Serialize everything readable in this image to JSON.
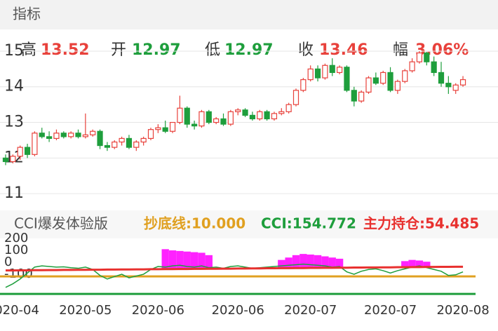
{
  "header": {
    "title": "指标"
  },
  "quote": {
    "items": [
      {
        "label": "高",
        "value": "13.52",
        "color": "#e8413b"
      },
      {
        "label": "开",
        "value": "12.97",
        "color": "#1e9e3c"
      },
      {
        "label": "低",
        "value": "12.97",
        "color": "#1e9e3c"
      },
      {
        "label": "收",
        "value": "13.46",
        "color": "#e8413b"
      },
      {
        "label": "幅",
        "value": "3.06%",
        "color": "#e8413b"
      }
    ]
  },
  "chart_data": [
    {
      "type": "candlestick",
      "up_color": "#e8413b",
      "down_color": "#1e9e3c",
      "ylim": [
        10.57,
        15.55
      ],
      "yticks": [
        15,
        14,
        13,
        12,
        11
      ],
      "grid": true,
      "open": [
        12.0,
        11.9,
        12.05,
        12.3,
        12.1,
        12.7,
        12.6,
        12.55,
        12.7,
        12.6,
        12.7,
        12.6,
        12.65,
        12.75,
        12.35,
        12.3,
        12.45,
        12.55,
        12.3,
        12.45,
        12.55,
        12.8,
        12.85,
        12.75,
        13.0,
        13.4,
        12.95,
        12.9,
        13.3,
        13.0,
        13.1,
        12.95,
        13.3,
        13.35,
        13.2,
        13.1,
        13.3,
        13.1,
        13.25,
        13.3,
        13.5,
        13.9,
        14.2,
        14.5,
        14.25,
        14.6,
        14.4,
        14.55,
        13.9,
        13.6,
        13.85,
        14.25,
        14.1,
        14.4,
        13.9,
        14.15,
        14.45,
        14.7,
        14.95,
        14.7,
        14.4,
        14.1,
        13.9,
        14.05
      ],
      "high": [
        12.1,
        12.1,
        12.35,
        12.4,
        12.75,
        12.85,
        12.75,
        12.8,
        12.75,
        12.75,
        12.8,
        13.25,
        12.8,
        12.8,
        12.45,
        12.5,
        12.6,
        12.65,
        12.5,
        12.6,
        12.85,
        12.95,
        13.05,
        13.0,
        13.75,
        13.45,
        13.05,
        13.35,
        13.35,
        13.15,
        13.25,
        13.35,
        13.4,
        13.4,
        13.3,
        13.35,
        13.35,
        13.3,
        13.4,
        13.55,
        13.95,
        14.25,
        14.6,
        14.6,
        14.65,
        14.8,
        14.6,
        14.6,
        14.0,
        13.9,
        14.3,
        14.4,
        14.45,
        14.55,
        14.2,
        14.5,
        14.8,
        15.0,
        14.98,
        14.85,
        14.7,
        14.3,
        14.1,
        14.3
      ],
      "low": [
        11.8,
        11.85,
        11.95,
        12.0,
        12.05,
        12.55,
        12.45,
        12.5,
        12.55,
        12.55,
        12.55,
        12.55,
        12.6,
        12.25,
        12.2,
        12.25,
        12.35,
        12.25,
        12.2,
        12.35,
        12.5,
        12.7,
        12.7,
        12.7,
        12.95,
        12.85,
        12.8,
        12.85,
        12.95,
        12.95,
        12.9,
        12.9,
        13.2,
        13.15,
        13.05,
        13.05,
        13.05,
        13.05,
        13.2,
        13.25,
        13.45,
        13.85,
        14.15,
        14.15,
        14.2,
        14.3,
        14.35,
        13.85,
        13.45,
        13.55,
        13.8,
        14.05,
        14.05,
        13.85,
        13.8,
        14.1,
        14.4,
        14.65,
        14.6,
        14.3,
        14.0,
        13.8,
        13.8,
        14.0
      ],
      "close": [
        11.9,
        12.05,
        12.3,
        12.1,
        12.7,
        12.6,
        12.55,
        12.7,
        12.6,
        12.7,
        12.6,
        12.65,
        12.75,
        12.35,
        12.3,
        12.45,
        12.55,
        12.3,
        12.45,
        12.55,
        12.8,
        12.85,
        12.75,
        13.0,
        13.4,
        12.95,
        12.9,
        13.3,
        13.0,
        13.1,
        12.95,
        13.3,
        13.35,
        13.2,
        13.1,
        13.3,
        13.1,
        13.25,
        13.3,
        13.5,
        13.9,
        14.2,
        14.5,
        14.25,
        14.6,
        14.4,
        14.55,
        13.9,
        13.6,
        13.85,
        14.25,
        14.1,
        14.4,
        13.9,
        14.15,
        14.45,
        14.7,
        14.95,
        14.7,
        14.4,
        14.1,
        14.0,
        14.05,
        14.2
      ]
    },
    {
      "type": "line",
      "legend_title": "CCI爆发体验版",
      "ylim": [
        -270,
        200
      ],
      "yticks": [
        200,
        100,
        0,
        -100
      ],
      "categories": [
        null,
        "2020-04",
        null,
        null,
        null,
        null,
        null,
        null,
        null,
        null,
        null,
        "2020-05",
        null,
        null,
        null,
        null,
        null,
        null,
        null,
        null,
        null,
        "2020-06",
        null,
        null,
        null,
        null,
        null,
        null,
        null,
        null,
        null,
        null,
        "2020-06",
        null,
        null,
        null,
        null,
        null,
        null,
        null,
        null,
        null,
        "2020-07",
        null,
        null,
        null,
        null,
        null,
        null,
        null,
        null,
        null,
        null,
        "2020-07",
        null,
        null,
        null,
        null,
        null,
        null,
        null,
        null,
        null,
        "2020-08"
      ],
      "series": [
        {
          "name": "抄底线:10.000",
          "color": "#e0a020",
          "level": -118
        },
        {
          "name": "CCI:154.772",
          "color": "#1e9e3c",
          "values": [
            -210,
            -180,
            -140,
            -90,
            -40,
            -30,
            -35,
            -40,
            -38,
            -45,
            -50,
            -40,
            -60,
            -110,
            -140,
            -120,
            -100,
            -130,
            -115,
            -100,
            -60,
            -35,
            -40,
            -30,
            -25,
            -35,
            -40,
            -30,
            -45,
            -40,
            -50,
            -35,
            -30,
            -40,
            -50,
            -45,
            -40,
            -35,
            -30,
            -25,
            -20,
            -15,
            -20,
            -25,
            -30,
            -40,
            -35,
            -80,
            -100,
            -75,
            -60,
            -55,
            -70,
            -90,
            -70,
            -55,
            -40,
            -30,
            -45,
            -60,
            -75,
            -110,
            -105,
            -80
          ]
        },
        {
          "name": "主力持仓:54.485",
          "color": "#e8312f",
          "values": [
            -68,
            -68,
            -67,
            -67,
            -66,
            -66,
            -65,
            -65,
            -64,
            -64,
            -63,
            -63,
            -62,
            -62,
            -61,
            -61,
            -60,
            -60,
            -59,
            -59,
            -58,
            -58,
            -57,
            -57,
            -56,
            -56,
            -55,
            -55,
            -54,
            -54,
            -53,
            -53,
            -52,
            -52,
            -51,
            -51,
            -50,
            -50,
            -49,
            -49,
            -48,
            -48,
            -47,
            -47,
            -46,
            -46,
            -45,
            -45,
            -44,
            -44,
            -43,
            -43,
            -42,
            -42,
            -41,
            -41,
            -40,
            -40,
            -39,
            -39,
            -38,
            -38,
            -37,
            -37
          ]
        },
        {
          "color": "#ff22ff",
          "bars": [
            null,
            null,
            null,
            null,
            null,
            null,
            null,
            null,
            null,
            null,
            null,
            null,
            null,
            null,
            null,
            null,
            null,
            null,
            null,
            null,
            null,
            null,
            110,
            100,
            95,
            90,
            85,
            80,
            60,
            null,
            null,
            null,
            null,
            null,
            null,
            null,
            null,
            null,
            20,
            40,
            60,
            70,
            65,
            60,
            50,
            40,
            30,
            null,
            null,
            null,
            null,
            null,
            null,
            null,
            null,
            10,
            20,
            15,
            5,
            null,
            null,
            null,
            null,
            null
          ]
        },
        {
          "color": "#1e9e3c",
          "level": -265
        }
      ]
    }
  ]
}
